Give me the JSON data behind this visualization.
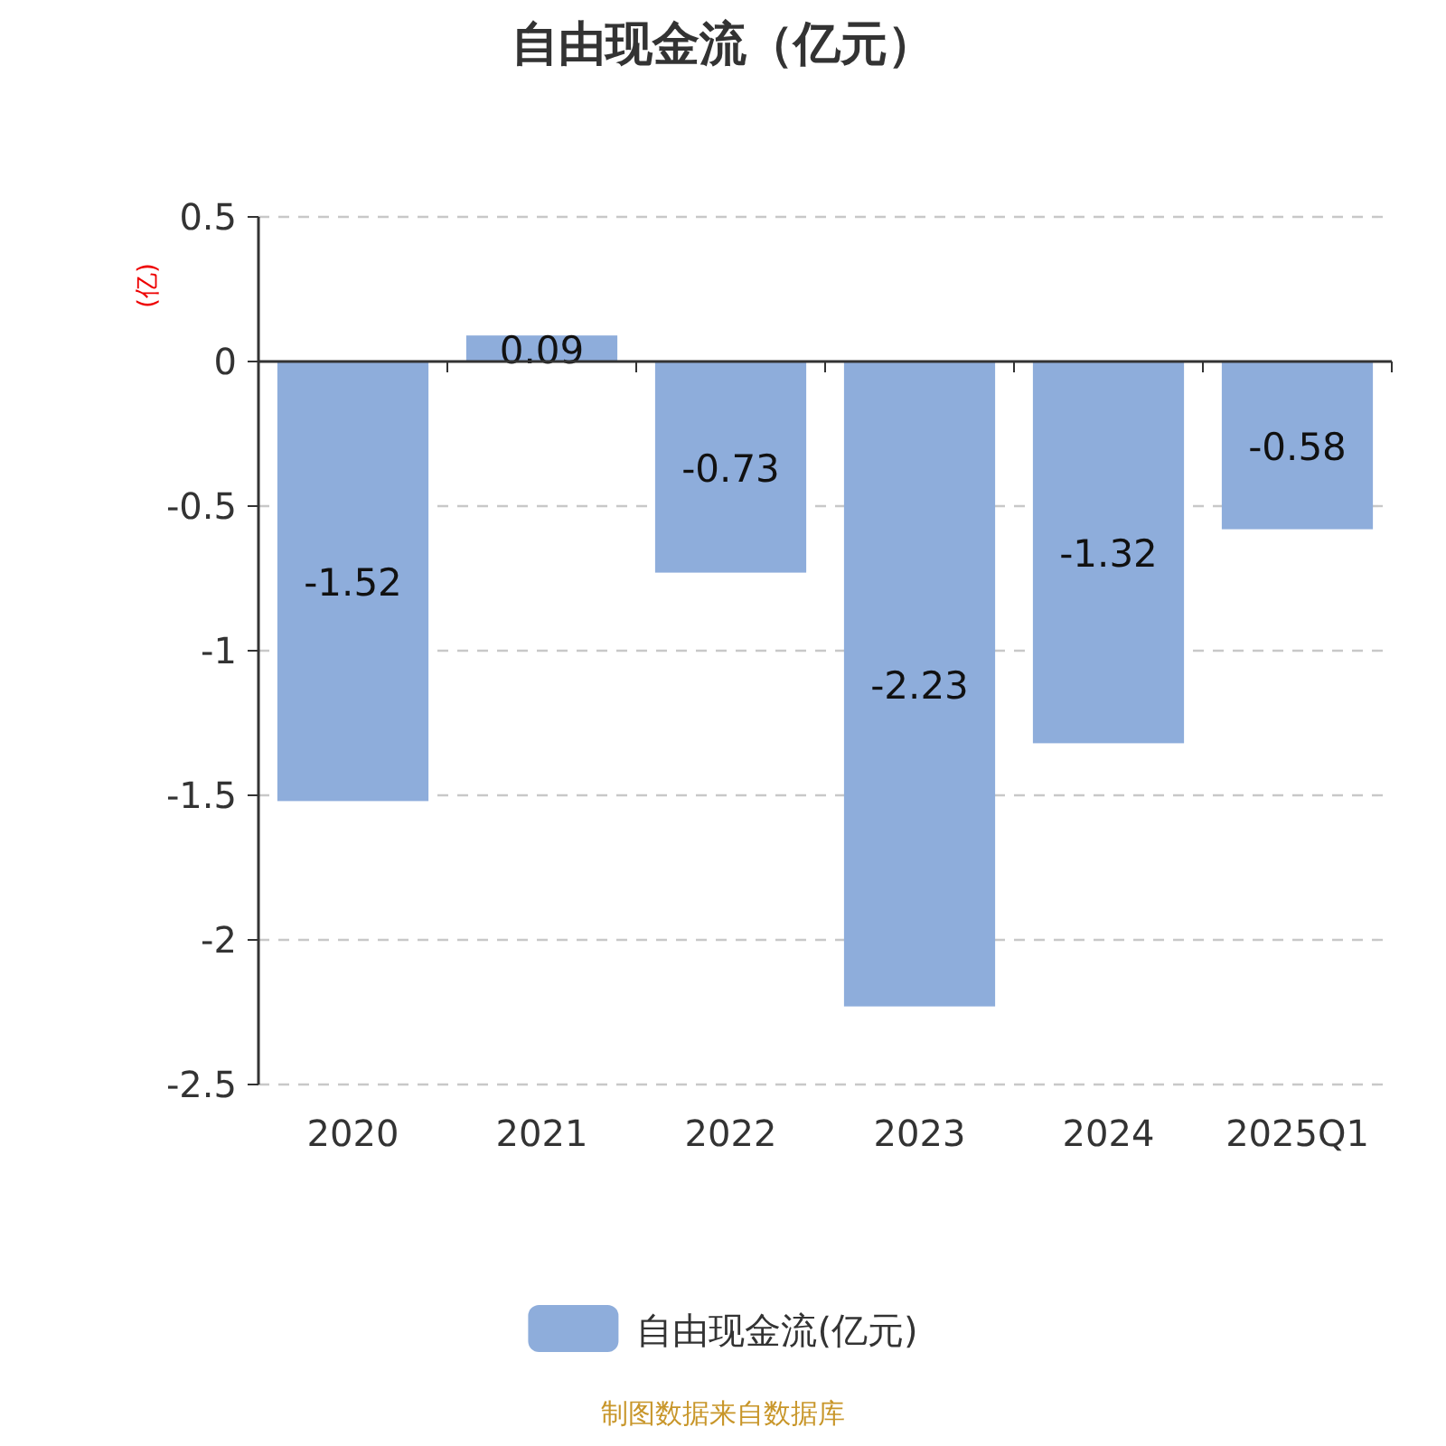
{
  "chart_data": {
    "type": "bar",
    "title": "自由现金流（亿元）",
    "ylabel": "(亿)",
    "categories": [
      "2020",
      "2021",
      "2022",
      "2023",
      "2024",
      "2025Q1"
    ],
    "series": [
      {
        "name": "自由现金流(亿元)",
        "color": "#8eaddb",
        "values": [
          -1.52,
          0.09,
          -0.73,
          -2.23,
          -1.32,
          -0.58
        ]
      }
    ],
    "ylim": [
      -2.5,
      0.5
    ],
    "yticks": [
      -2.5,
      -2,
      -1.5,
      -1,
      -0.5,
      0,
      0.5
    ],
    "grid": "y",
    "legend": "bottom",
    "data_labels": true,
    "annotations": [
      "制图数据来自数据库"
    ]
  }
}
